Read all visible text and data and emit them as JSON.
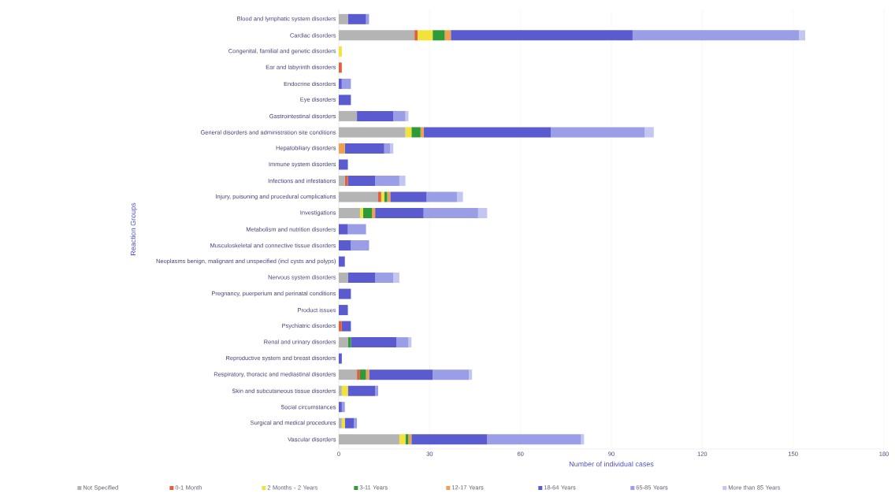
{
  "chart_data": {
    "type": "bar",
    "orientation": "horizontal",
    "stacked": true,
    "xlabel": "Number of individual cases",
    "ylabel": "Reaction Groups",
    "categories": [
      "Blood and lymphatic system disorders",
      "Cardiac disorders",
      "Congenital, familial and genetic disorders",
      "Ear and labyrinth disorders",
      "Endocrine disorders",
      "Eye disorders",
      "Gastrointestinal disorders",
      "General disorders and administration site conditions",
      "Hepatobiliary disorders",
      "Immune system disorders",
      "Infections and infestations",
      "Injury, poisoning and procedural complications",
      "Investigations",
      "Metabolism and nutrition disorders",
      "Musculoskeletal and connective tissue disorders",
      "Neoplasms benign, malignant and unspecified (incl cysts and polyps)",
      "Nervous system disorders",
      "Pregnancy, puerperium and perinatal conditions",
      "Product issues",
      "Psychiatric disorders",
      "Renal and urinary disorders",
      "Reproductive system and breast disorders",
      "Respiratory, thoracic and mediastinal disorders",
      "Skin and subcutaneous tissue disorders",
      "Social circumstances",
      "Surgical and medical procedures",
      "Vascular disorders"
    ],
    "series": [
      {
        "name": "Not Specified",
        "color": "#b4b4b4",
        "values": [
          3,
          25,
          0,
          0,
          0,
          0,
          6,
          22,
          0,
          0,
          2,
          13,
          7,
          0,
          0,
          0,
          3,
          0,
          0,
          0,
          3,
          0,
          6,
          1,
          0,
          1,
          20
        ]
      },
      {
        "name": "0-1 Month",
        "color": "#e0603a",
        "values": [
          0,
          1,
          0,
          1,
          0,
          0,
          0,
          0,
          0,
          0,
          1,
          1,
          0,
          0,
          0,
          0,
          0,
          0,
          0,
          1,
          0,
          0,
          1,
          0,
          0,
          0,
          0
        ]
      },
      {
        "name": "2 Months - 2 Years",
        "color": "#f2e23c",
        "values": [
          0,
          5,
          1,
          0,
          0,
          0,
          0,
          2,
          0,
          0,
          0,
          1,
          1,
          0,
          0,
          0,
          0,
          0,
          0,
          0,
          0,
          0,
          0,
          2,
          0,
          1,
          2
        ]
      },
      {
        "name": "3-11 Years",
        "color": "#2e9a3a",
        "values": [
          0,
          4,
          0,
          0,
          0,
          0,
          0,
          3,
          0,
          0,
          0,
          1,
          3,
          0,
          0,
          0,
          0,
          0,
          0,
          0,
          1,
          0,
          2,
          0,
          0,
          0,
          1
        ]
      },
      {
        "name": "12-17 Years",
        "color": "#f0a050",
        "values": [
          0,
          2,
          0,
          0,
          0,
          0,
          0,
          1,
          2,
          0,
          0,
          1,
          1,
          0,
          0,
          0,
          0,
          0,
          0,
          0,
          0,
          0,
          1,
          0,
          0,
          0,
          1
        ]
      },
      {
        "name": "18-64 Years",
        "color": "#5b5bd0",
        "values": [
          6,
          60,
          0,
          0,
          1,
          4,
          12,
          42,
          13,
          3,
          9,
          12,
          16,
          3,
          4,
          2,
          9,
          4,
          3,
          3,
          15,
          1,
          21,
          9,
          1,
          3,
          25
        ]
      },
      {
        "name": "65-85 Years",
        "color": "#9a9ee6",
        "values": [
          1,
          55,
          0,
          0,
          3,
          0,
          4,
          31,
          2,
          0,
          8,
          10,
          18,
          6,
          6,
          0,
          6,
          0,
          0,
          0,
          4,
          0,
          12,
          1,
          1,
          1,
          31
        ]
      },
      {
        "name": "More than 85 Years",
        "color": "#c4c6f2",
        "values": [
          0,
          2,
          0,
          0,
          0,
          0,
          1,
          3,
          1,
          0,
          2,
          2,
          3,
          0,
          0,
          0,
          2,
          0,
          0,
          0,
          1,
          0,
          1,
          0,
          0,
          0,
          1
        ]
      }
    ],
    "xlim": [
      0,
      180
    ],
    "xticks": [
      0,
      30,
      60,
      90,
      120,
      150,
      180
    ],
    "grid": "x",
    "legend": "bottom"
  }
}
